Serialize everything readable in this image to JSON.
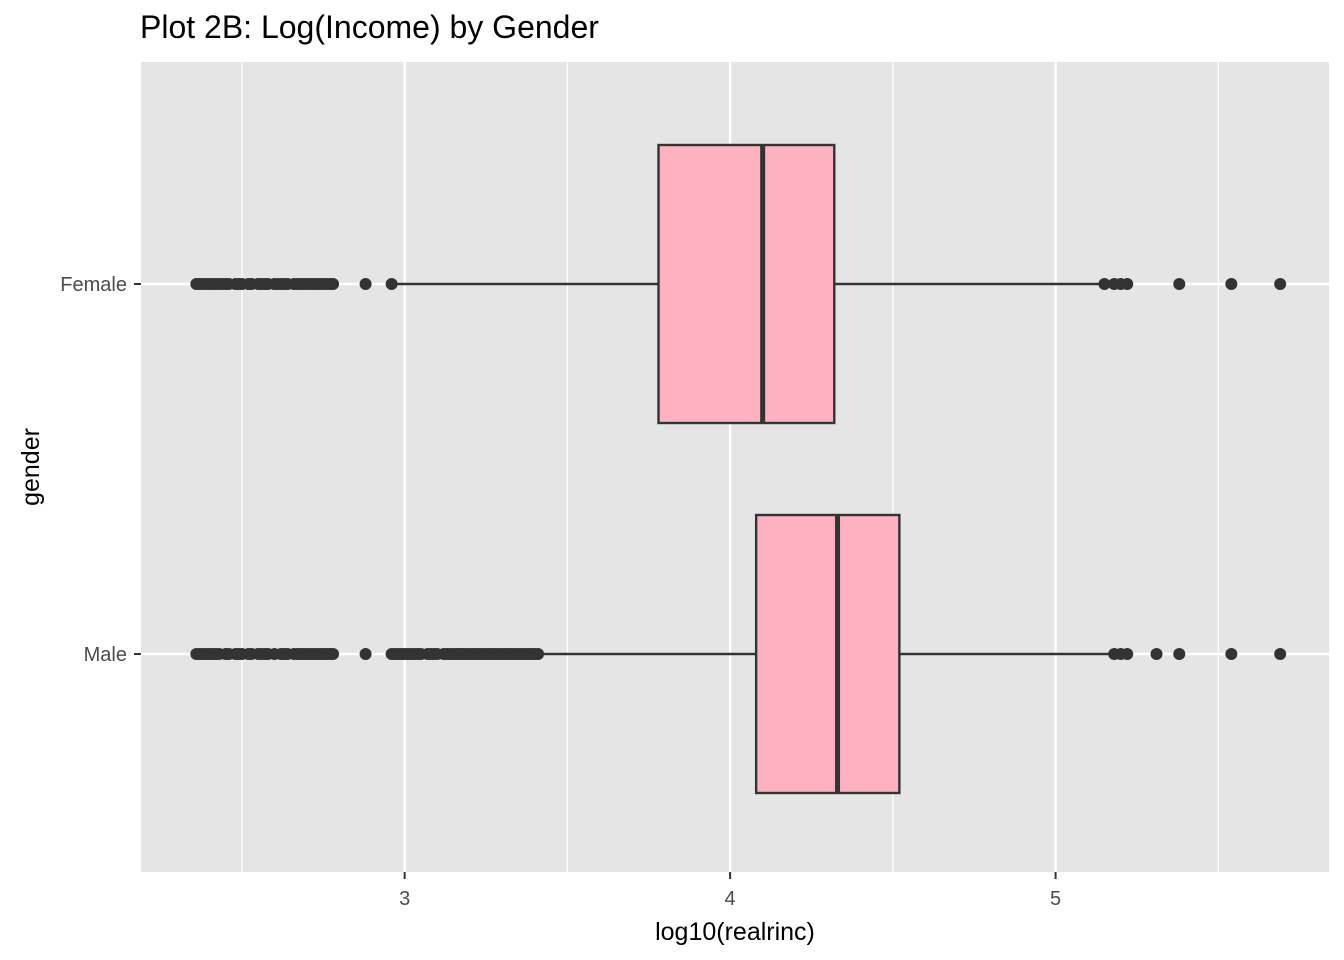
{
  "chart_data": {
    "type": "boxplot",
    "title": "Plot 2B: Log(Income) by Gender",
    "xlabel": "log10(realrinc)",
    "ylabel": "gender",
    "xlim": [
      2.19,
      5.84
    ],
    "x_ticks": [
      3,
      4,
      5
    ],
    "x_tick_labels": [
      "3",
      "4",
      "5"
    ],
    "x_minor_ticks": [
      2.5,
      3.5,
      4.5,
      5.5
    ],
    "grid": true,
    "legend": "none",
    "colors": {
      "panel": "#e5e5e5",
      "grid": "#ffffff",
      "box_fill": "#fdb1c1",
      "box_line": "#333333",
      "outlier": "#333333"
    },
    "categories": [
      "Female",
      "Male"
    ],
    "boxes": [
      {
        "category": "Female",
        "whisker_low": 2.96,
        "q1": 3.78,
        "median": 4.1,
        "q3": 4.32,
        "whisker_high": 5.15,
        "outliers": [
          2.36,
          2.37,
          2.38,
          2.39,
          2.4,
          2.41,
          2.42,
          2.43,
          2.44,
          2.45,
          2.46,
          2.48,
          2.49,
          2.5,
          2.52,
          2.53,
          2.55,
          2.56,
          2.57,
          2.58,
          2.6,
          2.61,
          2.62,
          2.63,
          2.64,
          2.66,
          2.67,
          2.68,
          2.69,
          2.7,
          2.71,
          2.72,
          2.73,
          2.74,
          2.75,
          2.76,
          2.77,
          2.78,
          2.88,
          2.96,
          5.15,
          5.18,
          5.2,
          5.22,
          5.38,
          5.54,
          5.69
        ]
      },
      {
        "category": "Male",
        "whisker_low": 3.42,
        "q1": 4.08,
        "median": 4.33,
        "q3": 4.52,
        "whisker_high": 5.18,
        "outliers": [
          2.36,
          2.37,
          2.38,
          2.39,
          2.4,
          2.41,
          2.42,
          2.43,
          2.45,
          2.46,
          2.48,
          2.49,
          2.5,
          2.52,
          2.53,
          2.55,
          2.56,
          2.57,
          2.58,
          2.6,
          2.62,
          2.63,
          2.64,
          2.66,
          2.67,
          2.68,
          2.69,
          2.7,
          2.71,
          2.72,
          2.73,
          2.74,
          2.75,
          2.76,
          2.77,
          2.78,
          2.88,
          2.96,
          2.97,
          2.98,
          2.99,
          3.0,
          3.01,
          3.02,
          3.03,
          3.04,
          3.05,
          3.07,
          3.08,
          3.09,
          3.1,
          3.12,
          3.13,
          3.14,
          3.15,
          3.16,
          3.17,
          3.18,
          3.19,
          3.2,
          3.21,
          3.22,
          3.23,
          3.24,
          3.25,
          3.26,
          3.27,
          3.28,
          3.29,
          3.3,
          3.31,
          3.32,
          3.33,
          3.34,
          3.35,
          3.36,
          3.37,
          3.38,
          3.39,
          3.4,
          3.41,
          5.18,
          5.2,
          5.22,
          5.31,
          5.38,
          5.54,
          5.69
        ]
      }
    ]
  }
}
